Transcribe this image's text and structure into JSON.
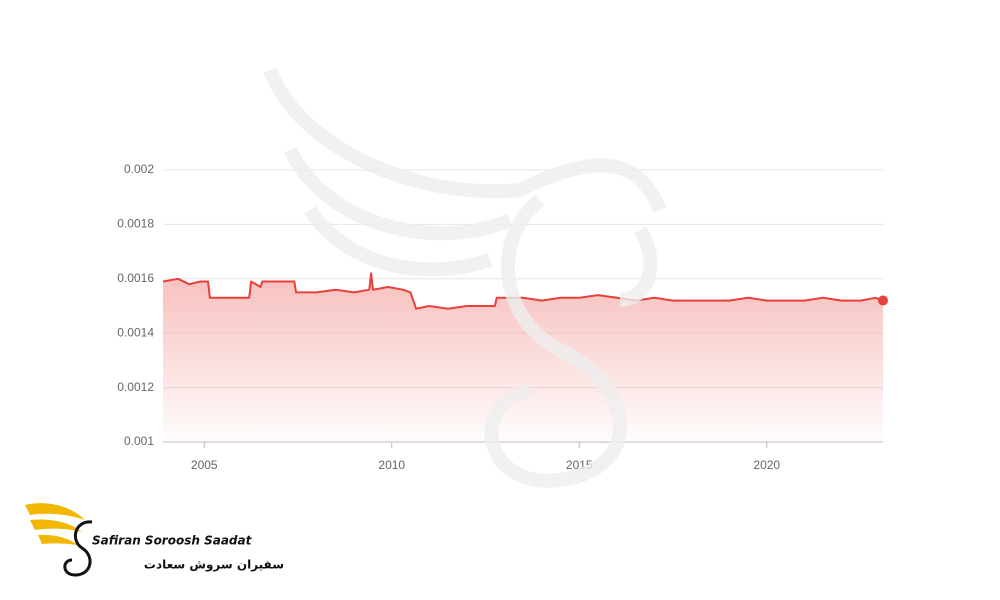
{
  "chart_data": {
    "type": "line",
    "series": [
      {
        "color": "#e8403a",
        "x": [
          2003.9,
          2004.3,
          2004.6,
          2004.9,
          2005.1,
          2005.15,
          2005.6,
          2006.0,
          2006.2,
          2006.25,
          2006.5,
          2006.55,
          2007.0,
          2007.4,
          2007.45,
          2008.0,
          2008.5,
          2009.0,
          2009.4,
          2009.45,
          2009.5,
          2009.9,
          2010.3,
          2010.5,
          2010.65,
          2011.0,
          2011.5,
          2012.0,
          2012.5,
          2012.75,
          2012.8,
          2013.5,
          2014.0,
          2014.5,
          2015.0,
          2015.5,
          2016.0,
          2016.5,
          2017.0,
          2017.5,
          2018.0,
          2018.5,
          2019.0,
          2019.5,
          2020.0,
          2020.5,
          2021.0,
          2021.5,
          2022.0,
          2022.5,
          2022.9,
          2023.1
        ],
        "values": [
          0.00159,
          0.0016,
          0.00158,
          0.00159,
          0.00159,
          0.00153,
          0.00153,
          0.00153,
          0.00153,
          0.00159,
          0.00157,
          0.00159,
          0.00159,
          0.00159,
          0.00155,
          0.00155,
          0.00156,
          0.00155,
          0.00156,
          0.00162,
          0.00156,
          0.00157,
          0.00156,
          0.00155,
          0.00149,
          0.0015,
          0.00149,
          0.0015,
          0.0015,
          0.0015,
          0.00153,
          0.00153,
          0.00152,
          0.00153,
          0.00153,
          0.00154,
          0.00153,
          0.00152,
          0.00153,
          0.00152,
          0.00152,
          0.00152,
          0.00152,
          0.00153,
          0.00152,
          0.00152,
          0.00152,
          0.00153,
          0.00152,
          0.00152,
          0.00153,
          0.00152
        ]
      }
    ],
    "xlim": [
      2003.9,
      2023.1
    ],
    "xticks": [
      2005,
      2010,
      2015,
      2020
    ],
    "ylim": [
      0.001,
      0.002
    ],
    "yticks": [
      0.001,
      0.0012,
      0.0014,
      0.0016,
      0.0018,
      0.002
    ],
    "grid": true,
    "area": true,
    "end_marker": true,
    "logo_text": "Safiran Soroosh Saadat",
    "logo_text_fa": "سفیران سروش سعادت"
  }
}
